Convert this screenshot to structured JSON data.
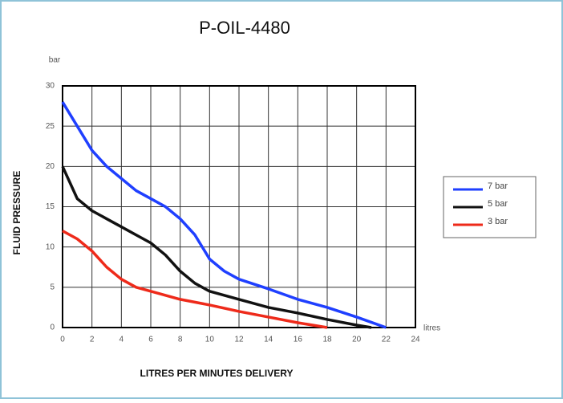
{
  "chart_data": {
    "type": "line",
    "title": "P-OIL-4480",
    "y_label": "FLUID PRESSURE",
    "x_label": "LITRES PER MINUTES DELIVERY",
    "y_unit": "bar",
    "x_unit": "litres",
    "xlim": [
      0,
      24
    ],
    "ylim": [
      0,
      30
    ],
    "xticks": [
      0,
      2,
      4,
      6,
      8,
      10,
      12,
      14,
      16,
      18,
      20,
      22,
      24
    ],
    "yticks": [
      0,
      5,
      10,
      15,
      20,
      25,
      30
    ],
    "grid": true,
    "legend": "right",
    "series": [
      {
        "name": "7 bar",
        "color": "#1f3fff",
        "x": [
          0,
          1,
          2,
          3,
          4,
          5,
          6,
          7,
          8,
          9,
          10,
          11,
          12,
          14,
          16,
          18,
          20,
          22
        ],
        "values": [
          28,
          25,
          22,
          20,
          18.5,
          17,
          16,
          15,
          13.5,
          11.5,
          8.5,
          7,
          6,
          4.8,
          3.5,
          2.5,
          1.3,
          0
        ]
      },
      {
        "name": "5 bar",
        "color": "#111111",
        "x": [
          0,
          1,
          2,
          3,
          4,
          5,
          6,
          7,
          8,
          9,
          10,
          12,
          14,
          16,
          18,
          20,
          21
        ],
        "values": [
          20,
          16,
          14.5,
          13.5,
          12.5,
          11.5,
          10.5,
          9,
          7,
          5.5,
          4.5,
          3.5,
          2.5,
          1.8,
          1,
          0.3,
          0
        ]
      },
      {
        "name": "3 bar",
        "color": "#ee2a1a",
        "x": [
          0,
          1,
          2,
          3,
          4,
          5,
          6,
          8,
          10,
          12,
          14,
          16,
          18
        ],
        "values": [
          12,
          11,
          9.5,
          7.5,
          6,
          5,
          4.5,
          3.5,
          2.8,
          2,
          1.3,
          0.6,
          0
        ]
      }
    ]
  }
}
